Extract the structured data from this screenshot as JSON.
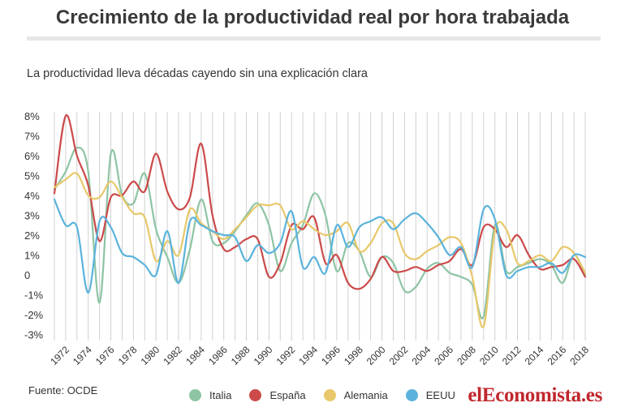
{
  "title": "Crecimiento de la productividad real por hora trabajada",
  "subtitle": "La productividad lleva décadas cayendo sin una explicación clara",
  "source": "Fuente: OCDE",
  "brand": "elEconomista.es",
  "colors": {
    "Italia": "#8ec4a4",
    "España": "#cc4a4a",
    "Alemania": "#e8c86a",
    "EEUU": "#5ab3dc",
    "grid": "#d0d0d0",
    "brand": "#c0272d"
  },
  "chart_data": {
    "type": "line",
    "x": [
      1971,
      1972,
      1973,
      1974,
      1975,
      1976,
      1977,
      1978,
      1979,
      1980,
      1981,
      1982,
      1983,
      1984,
      1985,
      1986,
      1987,
      1988,
      1989,
      1990,
      1991,
      1992,
      1993,
      1994,
      1995,
      1996,
      1997,
      1998,
      1999,
      2000,
      2001,
      2002,
      2003,
      2004,
      2005,
      2006,
      2007,
      2008,
      2009,
      2010,
      2011,
      2012,
      2013,
      2014,
      2015,
      2016,
      2017,
      2018
    ],
    "xticks": [
      1972,
      1974,
      1976,
      1978,
      1980,
      1982,
      1984,
      1986,
      1988,
      1990,
      1992,
      1994,
      1996,
      1998,
      2000,
      2002,
      2004,
      2006,
      2008,
      2010,
      2012,
      2014,
      2016,
      2018
    ],
    "yticks": [
      -3,
      -2,
      -1,
      0,
      1,
      2,
      3,
      4,
      5,
      6,
      7,
      8
    ],
    "ytick_labels": [
      "-3%",
      "-2%",
      "-1%",
      "0",
      "1%",
      "2%",
      "3%",
      "4%",
      "5%",
      "6%",
      "7%",
      "8%"
    ],
    "ylim": [
      -3.3,
      8.2
    ],
    "xlim": [
      1970.5,
      2018.5
    ],
    "grid": "vertical",
    "legend": "bottom",
    "series": [
      {
        "name": "Italia",
        "values": [
          4.3,
          5.2,
          6.4,
          5.2,
          -1.4,
          6.1,
          4.0,
          3.6,
          5.1,
          2.3,
          0.9,
          -0.4,
          1.3,
          3.8,
          1.7,
          1.6,
          2.2,
          3.0,
          3.6,
          2.5,
          0.2,
          1.6,
          2.5,
          4.1,
          3.0,
          0.2,
          1.6,
          1.2,
          -0.1,
          0.9,
          0.6,
          -0.8,
          -0.6,
          0.3,
          0.6,
          0.1,
          -0.1,
          -0.5,
          -2.1,
          2.5,
          0.2,
          0.4,
          0.6,
          0.8,
          0.5,
          -0.4,
          1.0,
          0.0
        ]
      },
      {
        "name": "España",
        "values": [
          4.1,
          8.0,
          6.0,
          4.5,
          1.7,
          3.9,
          4.0,
          4.7,
          4.2,
          6.1,
          4.2,
          3.3,
          3.9,
          6.6,
          3.0,
          1.3,
          1.4,
          1.8,
          1.8,
          -0.1,
          0.6,
          2.5,
          2.3,
          2.9,
          0.6,
          1.0,
          -0.4,
          -0.7,
          -0.2,
          0.9,
          0.2,
          0.2,
          0.4,
          0.2,
          0.5,
          0.7,
          1.3,
          0.5,
          2.4,
          2.3,
          1.4,
          2.0,
          1.0,
          0.3,
          0.4,
          0.5,
          0.8,
          -0.1
        ]
      },
      {
        "name": "Alemania",
        "values": [
          4.4,
          4.8,
          5.1,
          4.0,
          3.9,
          4.7,
          3.9,
          3.1,
          2.9,
          0.7,
          1.7,
          1.0,
          3.3,
          2.6,
          2.2,
          1.8,
          2.3,
          2.9,
          3.5,
          3.5,
          3.5,
          2.3,
          2.7,
          2.3,
          2.0,
          2.2,
          2.6,
          1.2,
          1.6,
          2.6,
          2.6,
          1.1,
          0.8,
          1.2,
          1.5,
          1.9,
          1.6,
          -0.1,
          -2.6,
          2.2,
          2.3,
          0.6,
          0.7,
          1.0,
          0.7,
          1.4,
          1.1,
          0.1
        ]
      },
      {
        "name": "EEUU",
        "values": [
          3.8,
          2.5,
          2.4,
          -0.9,
          2.7,
          2.4,
          1.1,
          0.9,
          0.5,
          0.0,
          2.2,
          -0.4,
          2.7,
          2.5,
          2.2,
          2.0,
          1.9,
          0.7,
          1.5,
          1.1,
          1.6,
          3.2,
          0.4,
          0.9,
          0.1,
          2.5,
          1.4,
          2.4,
          2.7,
          2.9,
          2.3,
          2.8,
          3.1,
          2.6,
          1.9,
          1.0,
          1.4,
          0.4,
          3.3,
          2.8,
          0.0,
          0.2,
          0.4,
          0.4,
          0.6,
          0.1,
          1.0,
          0.9
        ]
      }
    ]
  }
}
